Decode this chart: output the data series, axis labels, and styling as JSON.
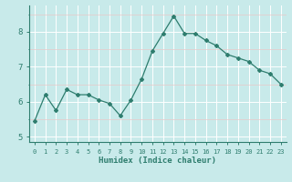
{
  "x": [
    0,
    1,
    2,
    3,
    4,
    5,
    6,
    7,
    8,
    9,
    10,
    11,
    12,
    13,
    14,
    15,
    16,
    17,
    18,
    19,
    20,
    21,
    22,
    23
  ],
  "y": [
    5.45,
    6.2,
    5.75,
    6.35,
    6.2,
    6.2,
    6.05,
    5.95,
    5.6,
    6.05,
    6.65,
    7.45,
    7.95,
    8.45,
    7.95,
    7.95,
    7.75,
    7.6,
    7.35,
    7.25,
    7.15,
    6.9,
    6.8,
    6.5
  ],
  "line_color": "#2e7d6e",
  "marker": "D",
  "marker_size": 2.0,
  "background_color": "#c8eaea",
  "xlabel": "Humidex (Indice chaleur)",
  "xlim": [
    -0.5,
    23.5
  ],
  "ylim": [
    4.85,
    8.75
  ],
  "yticks": [
    5,
    6,
    7,
    8
  ],
  "xticks": [
    0,
    1,
    2,
    3,
    4,
    5,
    6,
    7,
    8,
    9,
    10,
    11,
    12,
    13,
    14,
    15,
    16,
    17,
    18,
    19,
    20,
    21,
    22,
    23
  ],
  "spine_color": "#2e7d6e",
  "tick_color": "#2e7d6e",
  "label_color": "#2e7d6e",
  "grid_major_color": "#ffffff",
  "grid_minor_h_color": "#e8c8c8"
}
